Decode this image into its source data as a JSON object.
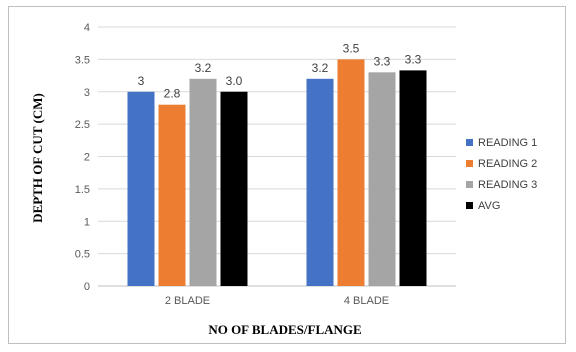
{
  "chart_data": {
    "type": "bar",
    "title": "",
    "xlabel": "NO OF BLADES/FLANGE",
    "ylabel": "DEPTH OF CUT (CM)",
    "ylim": [
      0,
      4
    ],
    "yticks": [
      "0",
      "0.5",
      "1",
      "1.5",
      "2",
      "2.5",
      "3",
      "3.5",
      "4"
    ],
    "grid": true,
    "legend_position": "right",
    "categories": [
      "2 BLADE",
      "4 BLADE"
    ],
    "series": [
      {
        "name": "READING 1",
        "color": "#4472C4",
        "values": [
          3.0,
          3.2
        ],
        "labels": [
          "3",
          "3.2"
        ]
      },
      {
        "name": "READING 2",
        "color": "#ED7D31",
        "values": [
          2.8,
          3.5
        ],
        "labels": [
          "2.8",
          "3.5"
        ]
      },
      {
        "name": "READING 3",
        "color": "#A5A5A5",
        "values": [
          3.2,
          3.3
        ],
        "labels": [
          "3.2",
          "3.3"
        ]
      },
      {
        "name": "AVG",
        "color": "#000000",
        "values": [
          3.0,
          3.33
        ],
        "labels": [
          "3.0",
          "3.3"
        ]
      }
    ]
  }
}
